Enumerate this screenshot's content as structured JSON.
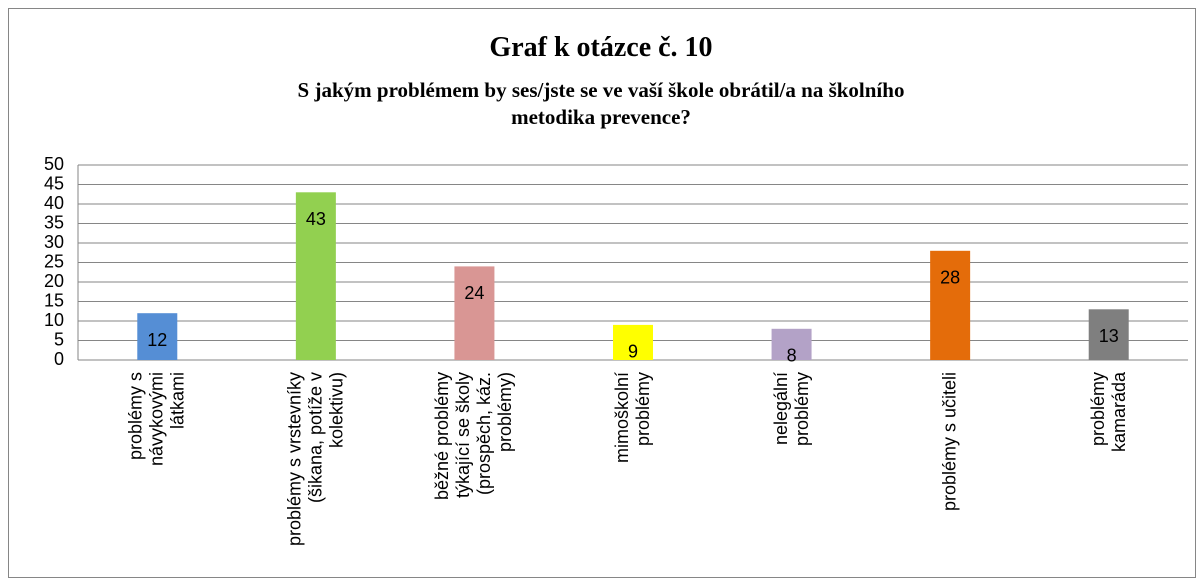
{
  "chart_data": {
    "type": "bar",
    "title": "Graf k otázce č. 10",
    "subtitle": "S jakým problémem by ses/jste se ve vaší škole obrátil/a na školního metodika prevence?",
    "categories": [
      "problémy s návykovými látkami",
      "problémy s vrstevníky (šikana, potíže v kolektivu)",
      "běžné problémy týkající se školy (prospěch, káz. problémy)",
      "mimoškolní problémy",
      "nelegální problémy",
      "problémy s učiteli",
      "problémy kamaráda"
    ],
    "values": [
      12,
      43,
      24,
      9,
      8,
      28,
      13
    ],
    "colors": [
      "#558ed5",
      "#92d050",
      "#d99694",
      "#ffff00",
      "#b3a2c7",
      "#e46c0a",
      "#7f7f7f"
    ],
    "ylim": [
      0,
      50
    ],
    "yticks": [
      0,
      5,
      10,
      15,
      20,
      25,
      30,
      35,
      40,
      45,
      50
    ],
    "grid": true
  }
}
